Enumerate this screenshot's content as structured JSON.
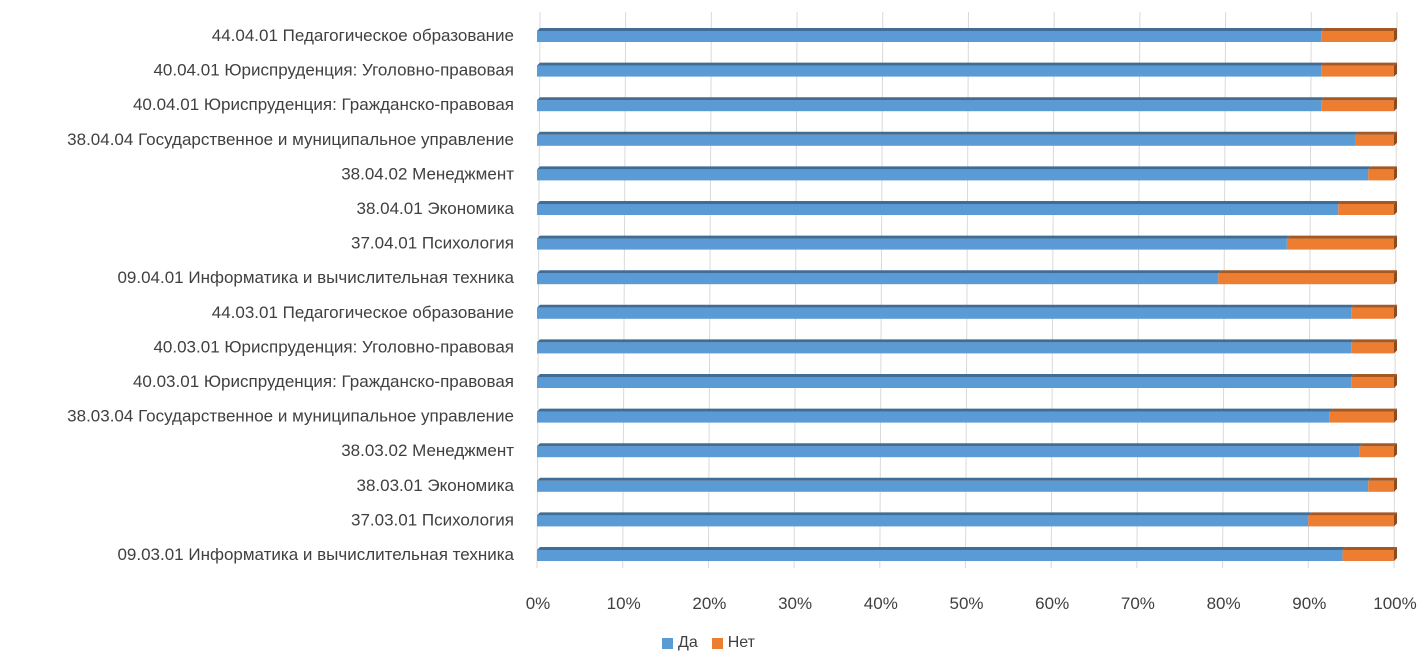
{
  "chart_data": {
    "type": "bar",
    "orientation": "horizontal",
    "stacked": "percent",
    "title": "",
    "xlabel": "",
    "ylabel": "",
    "xlim": [
      0,
      100
    ],
    "x_ticks": [
      "0%",
      "10%",
      "20%",
      "30%",
      "40%",
      "50%",
      "60%",
      "70%",
      "80%",
      "90%",
      "100%"
    ],
    "grid": "vertical",
    "legend_position": "bottom-center",
    "categories": [
      "44.04.01 Педагогическое образование",
      "40.04.01 Юриспруденция: Уголовно-правовая",
      "40.04.01 Юриспруденция: Гражданско-правовая",
      "38.04.04 Государственное и муниципальное управление",
      "38.04.02 Менеджмент",
      "38.04.01 Экономика",
      "37.04.01 Психология",
      "09.04.01 Информатика и вычислительная техника",
      "44.03.01 Педагогическое образование",
      "40.03.01 Юриспруденция: Уголовно-правовая",
      "40.03.01 Юриспруденция: Гражданско-правовая",
      "38.03.04 Государственное и муниципальное управление",
      "38.03.02 Менеджмент",
      "38.03.01 Экономика",
      "37.03.01 Психология",
      "09.03.01 Информатика и вычислительная техника"
    ],
    "series": [
      {
        "name": "Да",
        "color": "#5B9BD5",
        "values": [
          91.5,
          91.5,
          91.5,
          95.5,
          97,
          93.5,
          87.5,
          79.5,
          95,
          95,
          95,
          92.5,
          96,
          97,
          90,
          94
        ]
      },
      {
        "name": "Нет",
        "color": "#ED7D31",
        "values": [
          8.5,
          8.5,
          8.5,
          4.5,
          3,
          6.5,
          12.5,
          20.5,
          5,
          5,
          5,
          7.5,
          4,
          3,
          10,
          6
        ]
      }
    ]
  }
}
